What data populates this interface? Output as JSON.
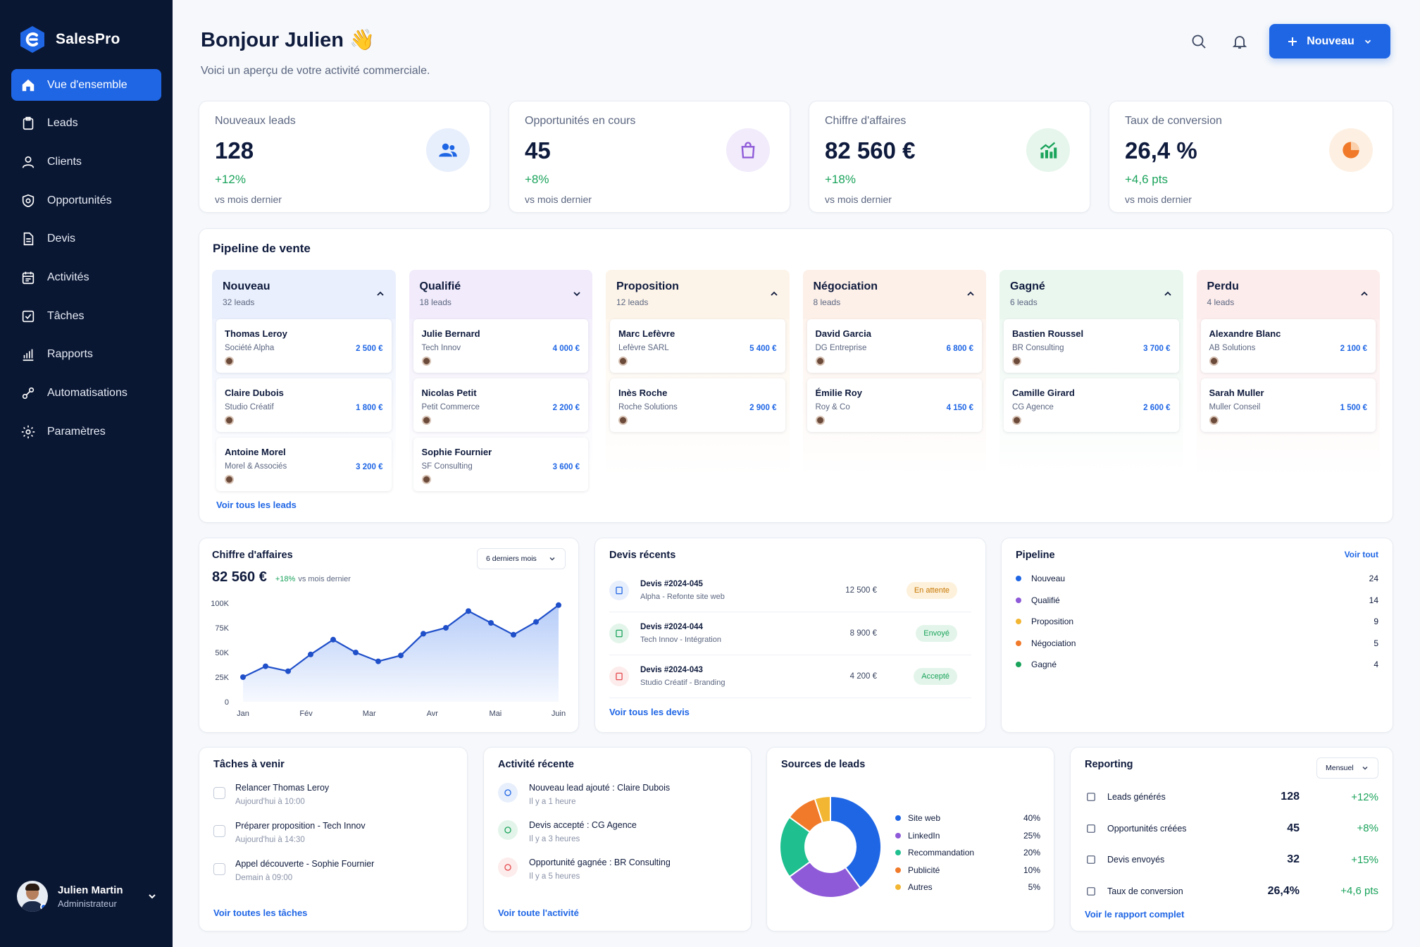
{
  "app": {
    "name": "SalesPro"
  },
  "nav": [
    {
      "label": "Vue d'ensemble",
      "icon": "home-icon"
    },
    {
      "label": "Leads",
      "icon": "clipboard-icon"
    },
    {
      "label": "Clients",
      "icon": "user-icon"
    },
    {
      "label": "Opportunités",
      "icon": "shield-icon"
    },
    {
      "label": "Devis",
      "icon": "document-icon"
    },
    {
      "label": "Activités",
      "icon": "calendar-icon"
    },
    {
      "label": "Tâches",
      "icon": "checkbox-icon"
    },
    {
      "label": "Rapports",
      "icon": "bar-chart-icon"
    },
    {
      "label": "Automatisations",
      "icon": "link-icon"
    },
    {
      "label": "Paramètres",
      "icon": "gear-icon"
    }
  ],
  "user": {
    "name": "Julien Martin",
    "role": "Administrateur"
  },
  "header": {
    "greeting": "Bonjour Julien 👋",
    "subtitle": "Voici un aperçu de votre activité commerciale.",
    "new_label": "Nouveau"
  },
  "kpis": [
    {
      "label": "Nouveaux leads",
      "value": "128",
      "delta": "+12%",
      "sub": "vs mois dernier"
    },
    {
      "label": "Opportunités en cours",
      "value": "45",
      "delta": "+8%",
      "sub": "vs mois dernier"
    },
    {
      "label": "Chiffre d'affaires",
      "value": "82 560 €",
      "delta": "+18%",
      "sub": "vs mois dernier"
    },
    {
      "label": "Taux de conversion",
      "value": "26,4 %",
      "delta": "+4,6 pts",
      "sub": "vs mois dernier"
    }
  ],
  "pipeline": {
    "title": "Pipeline de vente",
    "see_all": "Voir tous les leads",
    "columns": [
      {
        "title": "Nouveau",
        "count": "32 leads",
        "bg": "#e9effc",
        "leads": [
          {
            "name": "Thomas Leroy",
            "company": "Société Alpha",
            "amount": "2 500 €"
          },
          {
            "name": "Claire Dubois",
            "company": "Studio Créatif",
            "amount": "1 800 €"
          },
          {
            "name": "Antoine Morel",
            "company": "Morel & Associés",
            "amount": "3 200 €"
          }
        ]
      },
      {
        "title": "Qualifié",
        "count": "18 leads",
        "bg": "#f1ebfb",
        "leads": [
          {
            "name": "Julie Bernard",
            "company": "Tech Innov",
            "amount": "4 000 €"
          },
          {
            "name": "Nicolas Petit",
            "company": "Petit Commerce",
            "amount": "2 200 €"
          },
          {
            "name": "Sophie Fournier",
            "company": "SF Consulting",
            "amount": "3 600 €"
          }
        ]
      },
      {
        "title": "Proposition",
        "count": "12 leads",
        "bg": "#fdf4e9",
        "leads": [
          {
            "name": "Marc Lefèvre",
            "company": "Lefèvre SARL",
            "amount": "5 400 €"
          },
          {
            "name": "Inès Roche",
            "company": "Roche Solutions",
            "amount": "2 900 €"
          }
        ]
      },
      {
        "title": "Négociation",
        "count": "8 leads",
        "bg": "#fdf0e9",
        "leads": [
          {
            "name": "David Garcia",
            "company": "DG Entreprise",
            "amount": "6 800 €"
          },
          {
            "name": "Émilie Roy",
            "company": "Roy & Co",
            "amount": "4 150 €"
          }
        ]
      },
      {
        "title": "Gagné",
        "count": "6 leads",
        "bg": "#eaf7ef",
        "leads": [
          {
            "name": "Bastien Roussel",
            "company": "BR Consulting",
            "amount": "3 700 €"
          },
          {
            "name": "Camille Girard",
            "company": "CG Agence",
            "amount": "2 600 €"
          }
        ]
      },
      {
        "title": "Perdu",
        "count": "4 leads",
        "bg": "#fdecec",
        "leads": [
          {
            "name": "Alexandre Blanc",
            "company": "AB Solutions",
            "amount": "2 100 €"
          },
          {
            "name": "Sarah Muller",
            "company": "Muller Conseil",
            "amount": "1 500 €"
          }
        ]
      }
    ]
  },
  "revenue": {
    "title": "Chiffre d'affaires",
    "period": "6 derniers mois",
    "value": "82 560 €",
    "delta": "+18%",
    "delta_sub": "vs mois dernier"
  },
  "chart_data": {
    "type": "area",
    "title": "Chiffre d'affaires",
    "x_labels": [
      "Jan",
      "Fév",
      "Mar",
      "Avr",
      "Mai",
      "Juin"
    ],
    "y_ticks": [
      "100K",
      "75K",
      "50K",
      "25K",
      "0"
    ],
    "ylim": [
      0,
      100000
    ],
    "series": [
      {
        "values": [
          25000,
          36000,
          31000,
          48000,
          63000,
          50000,
          41000,
          47000,
          69000,
          75000,
          92000,
          80000,
          68000,
          81000,
          98000
        ]
      }
    ],
    "color": "#1f4fc9",
    "grid": false
  },
  "devis": {
    "title": "Devis récents",
    "see_all": "Voir tous les devis",
    "items": [
      {
        "ref": "Devis #2024-045",
        "desc": "Alpha - Refonte site web",
        "amount": "12 500 €",
        "status": "En attente",
        "status_color": "#c77700",
        "status_bg": "#fdf1dc"
      },
      {
        "ref": "Devis #2024-044",
        "desc": "Tech Innov - Intégration",
        "amount": "8 900 €",
        "status": "Envoyé",
        "status_color": "#1aa35b",
        "status_bg": "#e3f5ea"
      },
      {
        "ref": "Devis #2024-043",
        "desc": "Studio Créatif - Branding",
        "amount": "4 200 €",
        "status": "Accepté",
        "status_color": "#1aa35b",
        "status_bg": "#e3f5ea"
      }
    ]
  },
  "pipe_summary": {
    "title": "Pipeline",
    "see_all": "Voir tout",
    "items": [
      {
        "label": "Nouveau",
        "value": "24",
        "color": "#1f66e5"
      },
      {
        "label": "Qualifié",
        "value": "14",
        "color": "#8e5ad8"
      },
      {
        "label": "Proposition",
        "value": "9",
        "color": "#f2b632"
      },
      {
        "label": "Négociation",
        "value": "5",
        "color": "#f07a2a"
      },
      {
        "label": "Gagné",
        "value": "4",
        "color": "#1aa35b"
      }
    ]
  },
  "tasks": {
    "title": "Tâches à venir",
    "see_all": "Voir toutes les tâches",
    "items": [
      {
        "title": "Relancer Thomas Leroy",
        "sub": "Aujourd'hui à 10:00"
      },
      {
        "title": "Préparer proposition - Tech Innov",
        "sub": "Aujourd'hui à 14:30"
      },
      {
        "title": "Appel découverte - Sophie Fournier",
        "sub": "Demain à 09:00"
      }
    ]
  },
  "activity": {
    "title": "Activité récente",
    "see_all": "Voir toute l'activité",
    "items": [
      {
        "title": "Nouveau lead ajouté : Claire Dubois",
        "sub": "Il y a 1 heure"
      },
      {
        "title": "Devis accepté : CG Agence",
        "sub": "Il y a 3 heures"
      },
      {
        "title": "Opportunité gagnée : BR Consulting",
        "sub": "Il y a 5 heures"
      }
    ]
  },
  "sources": {
    "title": "Sources de leads",
    "items": [
      {
        "label": "Site web",
        "value": "40%",
        "pct": 40,
        "color": "#1f66e5"
      },
      {
        "label": "LinkedIn",
        "value": "25%",
        "pct": 25,
        "color": "#8e5ad8"
      },
      {
        "label": "Recommandation",
        "value": "20%",
        "pct": 20,
        "color": "#1fbf8f"
      },
      {
        "label": "Publicité",
        "value": "10%",
        "pct": 10,
        "color": "#f07a2a"
      },
      {
        "label": "Autres",
        "value": "5%",
        "pct": 5,
        "color": "#f2b632"
      }
    ]
  },
  "reporting": {
    "title": "Reporting",
    "period": "Mensuel",
    "see_all": "Voir le rapport complet",
    "items": [
      {
        "label": "Leads générés",
        "value": "128",
        "delta": "+12%"
      },
      {
        "label": "Opportunités créées",
        "value": "45",
        "delta": "+8%"
      },
      {
        "label": "Devis envoyés",
        "value": "32",
        "delta": "+15%"
      },
      {
        "label": "Taux de conversion",
        "value": "26,4%",
        "delta": "+4,6 pts"
      }
    ]
  }
}
